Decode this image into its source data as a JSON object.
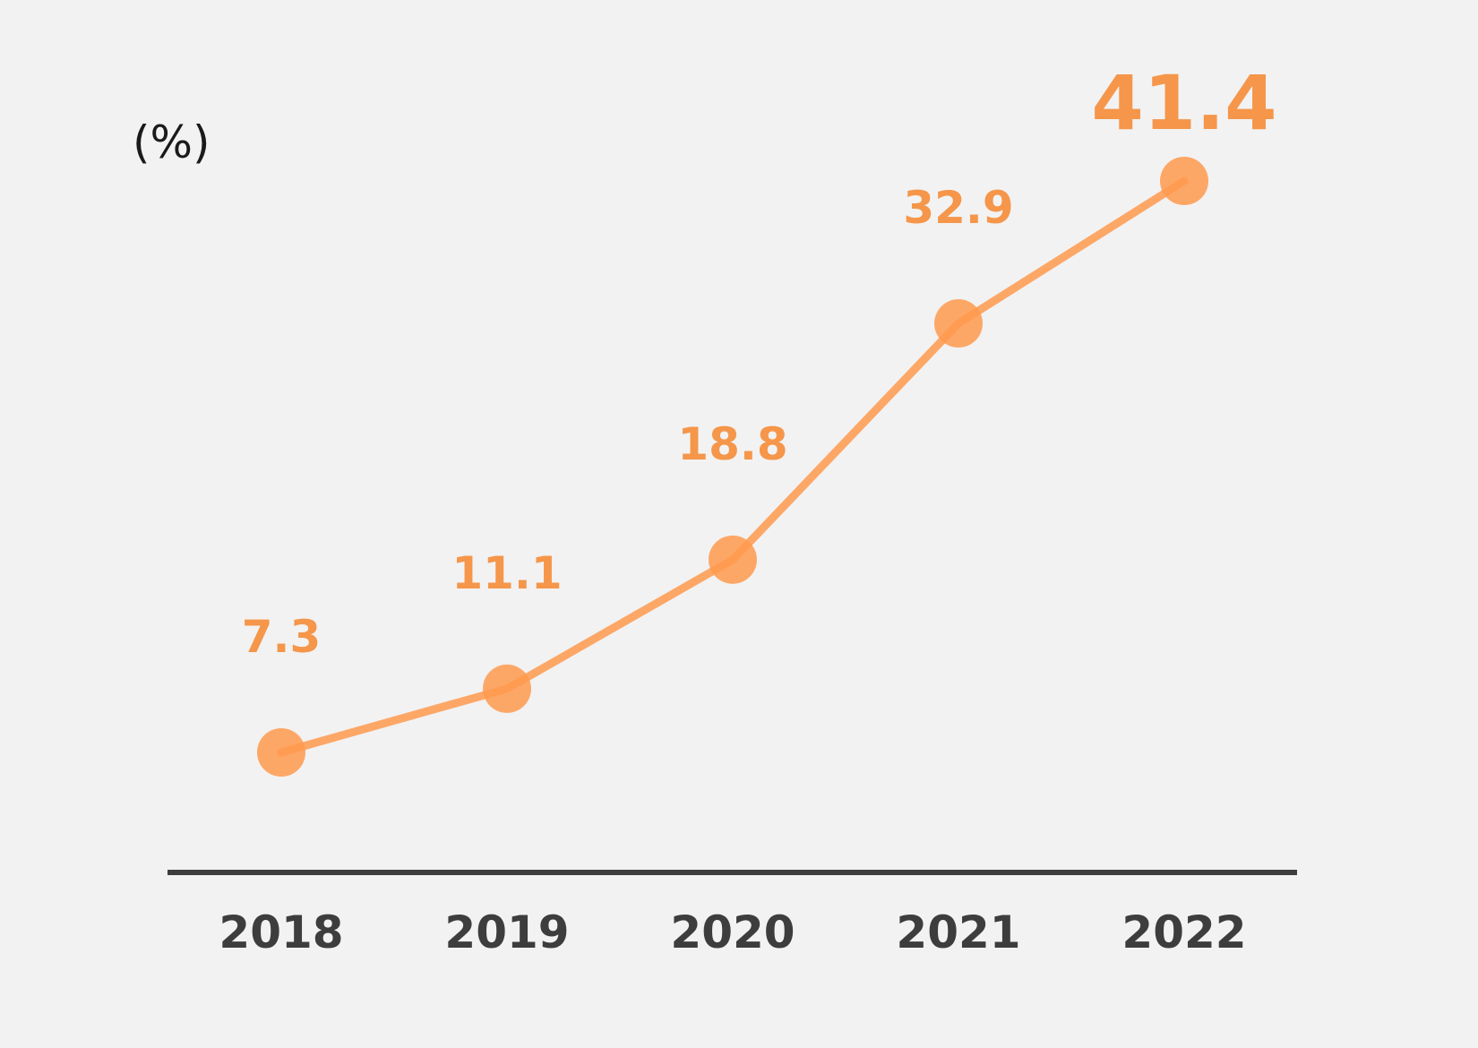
{
  "chart_data": {
    "type": "line",
    "unit_label": "(%)",
    "categories": [
      "2018",
      "2019",
      "2020",
      "2021",
      "2022"
    ],
    "values": [
      7.3,
      11.1,
      18.8,
      32.9,
      41.4
    ],
    "value_labels": [
      "7.3",
      "11.1",
      "18.8",
      "32.9",
      "41.4"
    ],
    "highlight_last": true,
    "grid": false,
    "legend": "none",
    "colors": {
      "line": "#ff9a4f",
      "marker": "#ff9a4f",
      "label": "#f5964a",
      "axis": "#3d3d3d",
      "background": "#f2f2f2"
    }
  }
}
